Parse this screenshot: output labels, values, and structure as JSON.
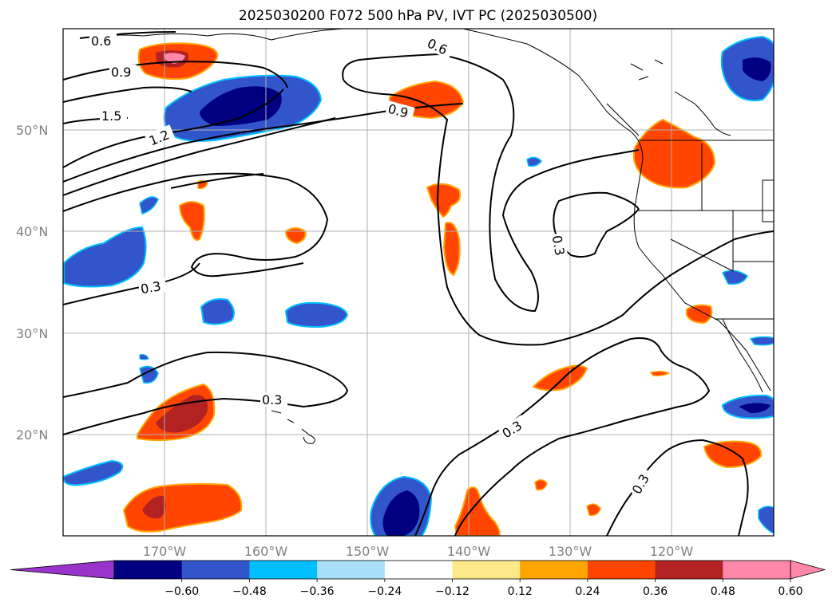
{
  "title": "2025030200 F072 500 hPa PV, IVT PC (2025030500)",
  "lat_labels": [
    "50°N",
    "40°N",
    "30°N",
    "20°N"
  ],
  "lon_labels": [
    "170°W",
    "160°W",
    "150°W",
    "140°W",
    "130°W",
    "120°W"
  ],
  "contour_labels": [
    "0.6",
    "0.9",
    "1.5",
    "1.2",
    "0.3",
    "0.6",
    "0.9",
    "0.3",
    "0.3",
    "0.3",
    "0.3"
  ],
  "colorbar": {
    "ticks": [
      "−0.60",
      "−0.48",
      "−0.36",
      "−0.24",
      "−0.12",
      "0.12",
      "0.24",
      "0.36",
      "0.48",
      "0.60"
    ],
    "colors": [
      "#000080",
      "#3355cc",
      "#00bfff",
      "#a8def8",
      "#ffffff",
      "#fde98a",
      "#ffa500",
      "#ff4500",
      "#b22222",
      "#ff88aa"
    ],
    "under_color": "#9933cc",
    "over_color": "#ff88aa"
  },
  "map_extent": {
    "lon": [
      "180°W",
      "110°W"
    ],
    "lat": [
      "10°N",
      "60°N"
    ]
  }
}
